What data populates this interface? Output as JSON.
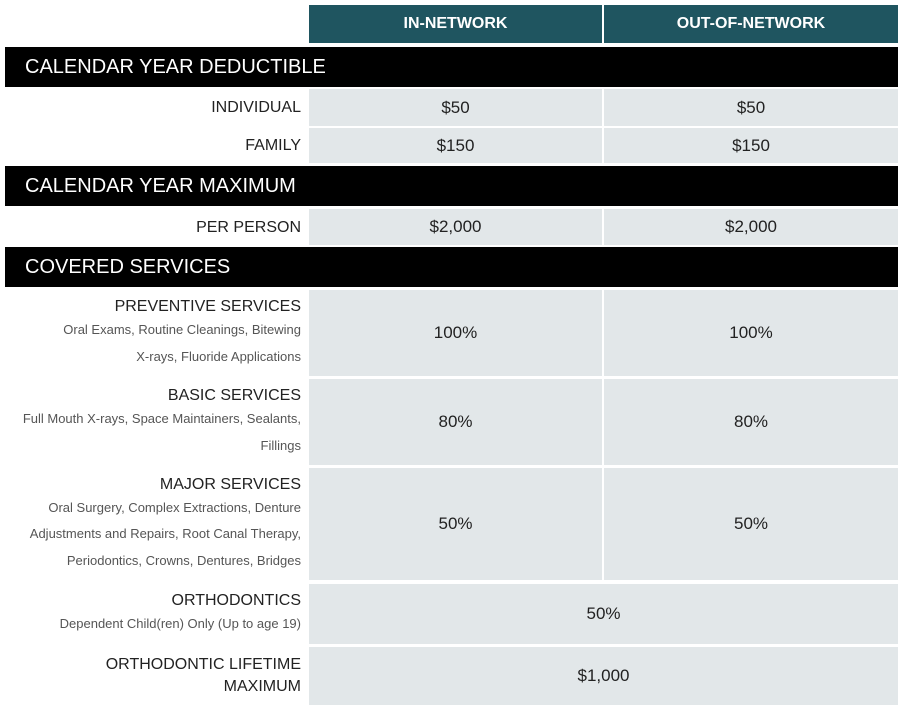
{
  "header": {
    "in_network": "IN-NETWORK",
    "out_of_network": "OUT-OF-NETWORK"
  },
  "sections": {
    "deductible": {
      "title": "CALENDAR YEAR DEDUCTIBLE",
      "individual": {
        "label": "INDIVIDUAL",
        "in": "$50",
        "out": "$50"
      },
      "family": {
        "label": "FAMILY",
        "in": "$150",
        "out": "$150"
      }
    },
    "maximum": {
      "title": "CALENDAR YEAR MAXIMUM",
      "per_person": {
        "label": "PER PERSON",
        "in": "$2,000",
        "out": "$2,000"
      }
    },
    "covered": {
      "title": "COVERED SERVICES",
      "preventive": {
        "label": "PREVENTIVE SERVICES",
        "desc_line1": "Oral Exams, Routine Cleanings, Bitewing",
        "desc_line2": "X-rays, Fluoride Applications",
        "in": "100%",
        "out": "100%"
      },
      "basic": {
        "label": "BASIC SERVICES",
        "desc_line1": "Full Mouth X-rays, Space Maintainers, Sealants,",
        "desc_line2": "Fillings",
        "in": "80%",
        "out": "80%"
      },
      "major": {
        "label": "MAJOR SERVICES",
        "desc_line1": "Oral Surgery, Complex Extractions, Denture",
        "desc_line2": "Adjustments and Repairs, Root Canal Therapy,",
        "desc_line3": "Periodontics, Crowns, Dentures, Bridges",
        "in": "50%",
        "out": "50%"
      },
      "orthodontics": {
        "label": "ORTHODONTICS",
        "desc_line1": "Dependent Child(ren) Only (Up to age 19)",
        "value": "50%"
      },
      "ortho_lifetime": {
        "label_line1": "ORTHODONTIC LIFETIME",
        "label_line2": "MAXIMUM",
        "value": "$1,000"
      }
    }
  }
}
